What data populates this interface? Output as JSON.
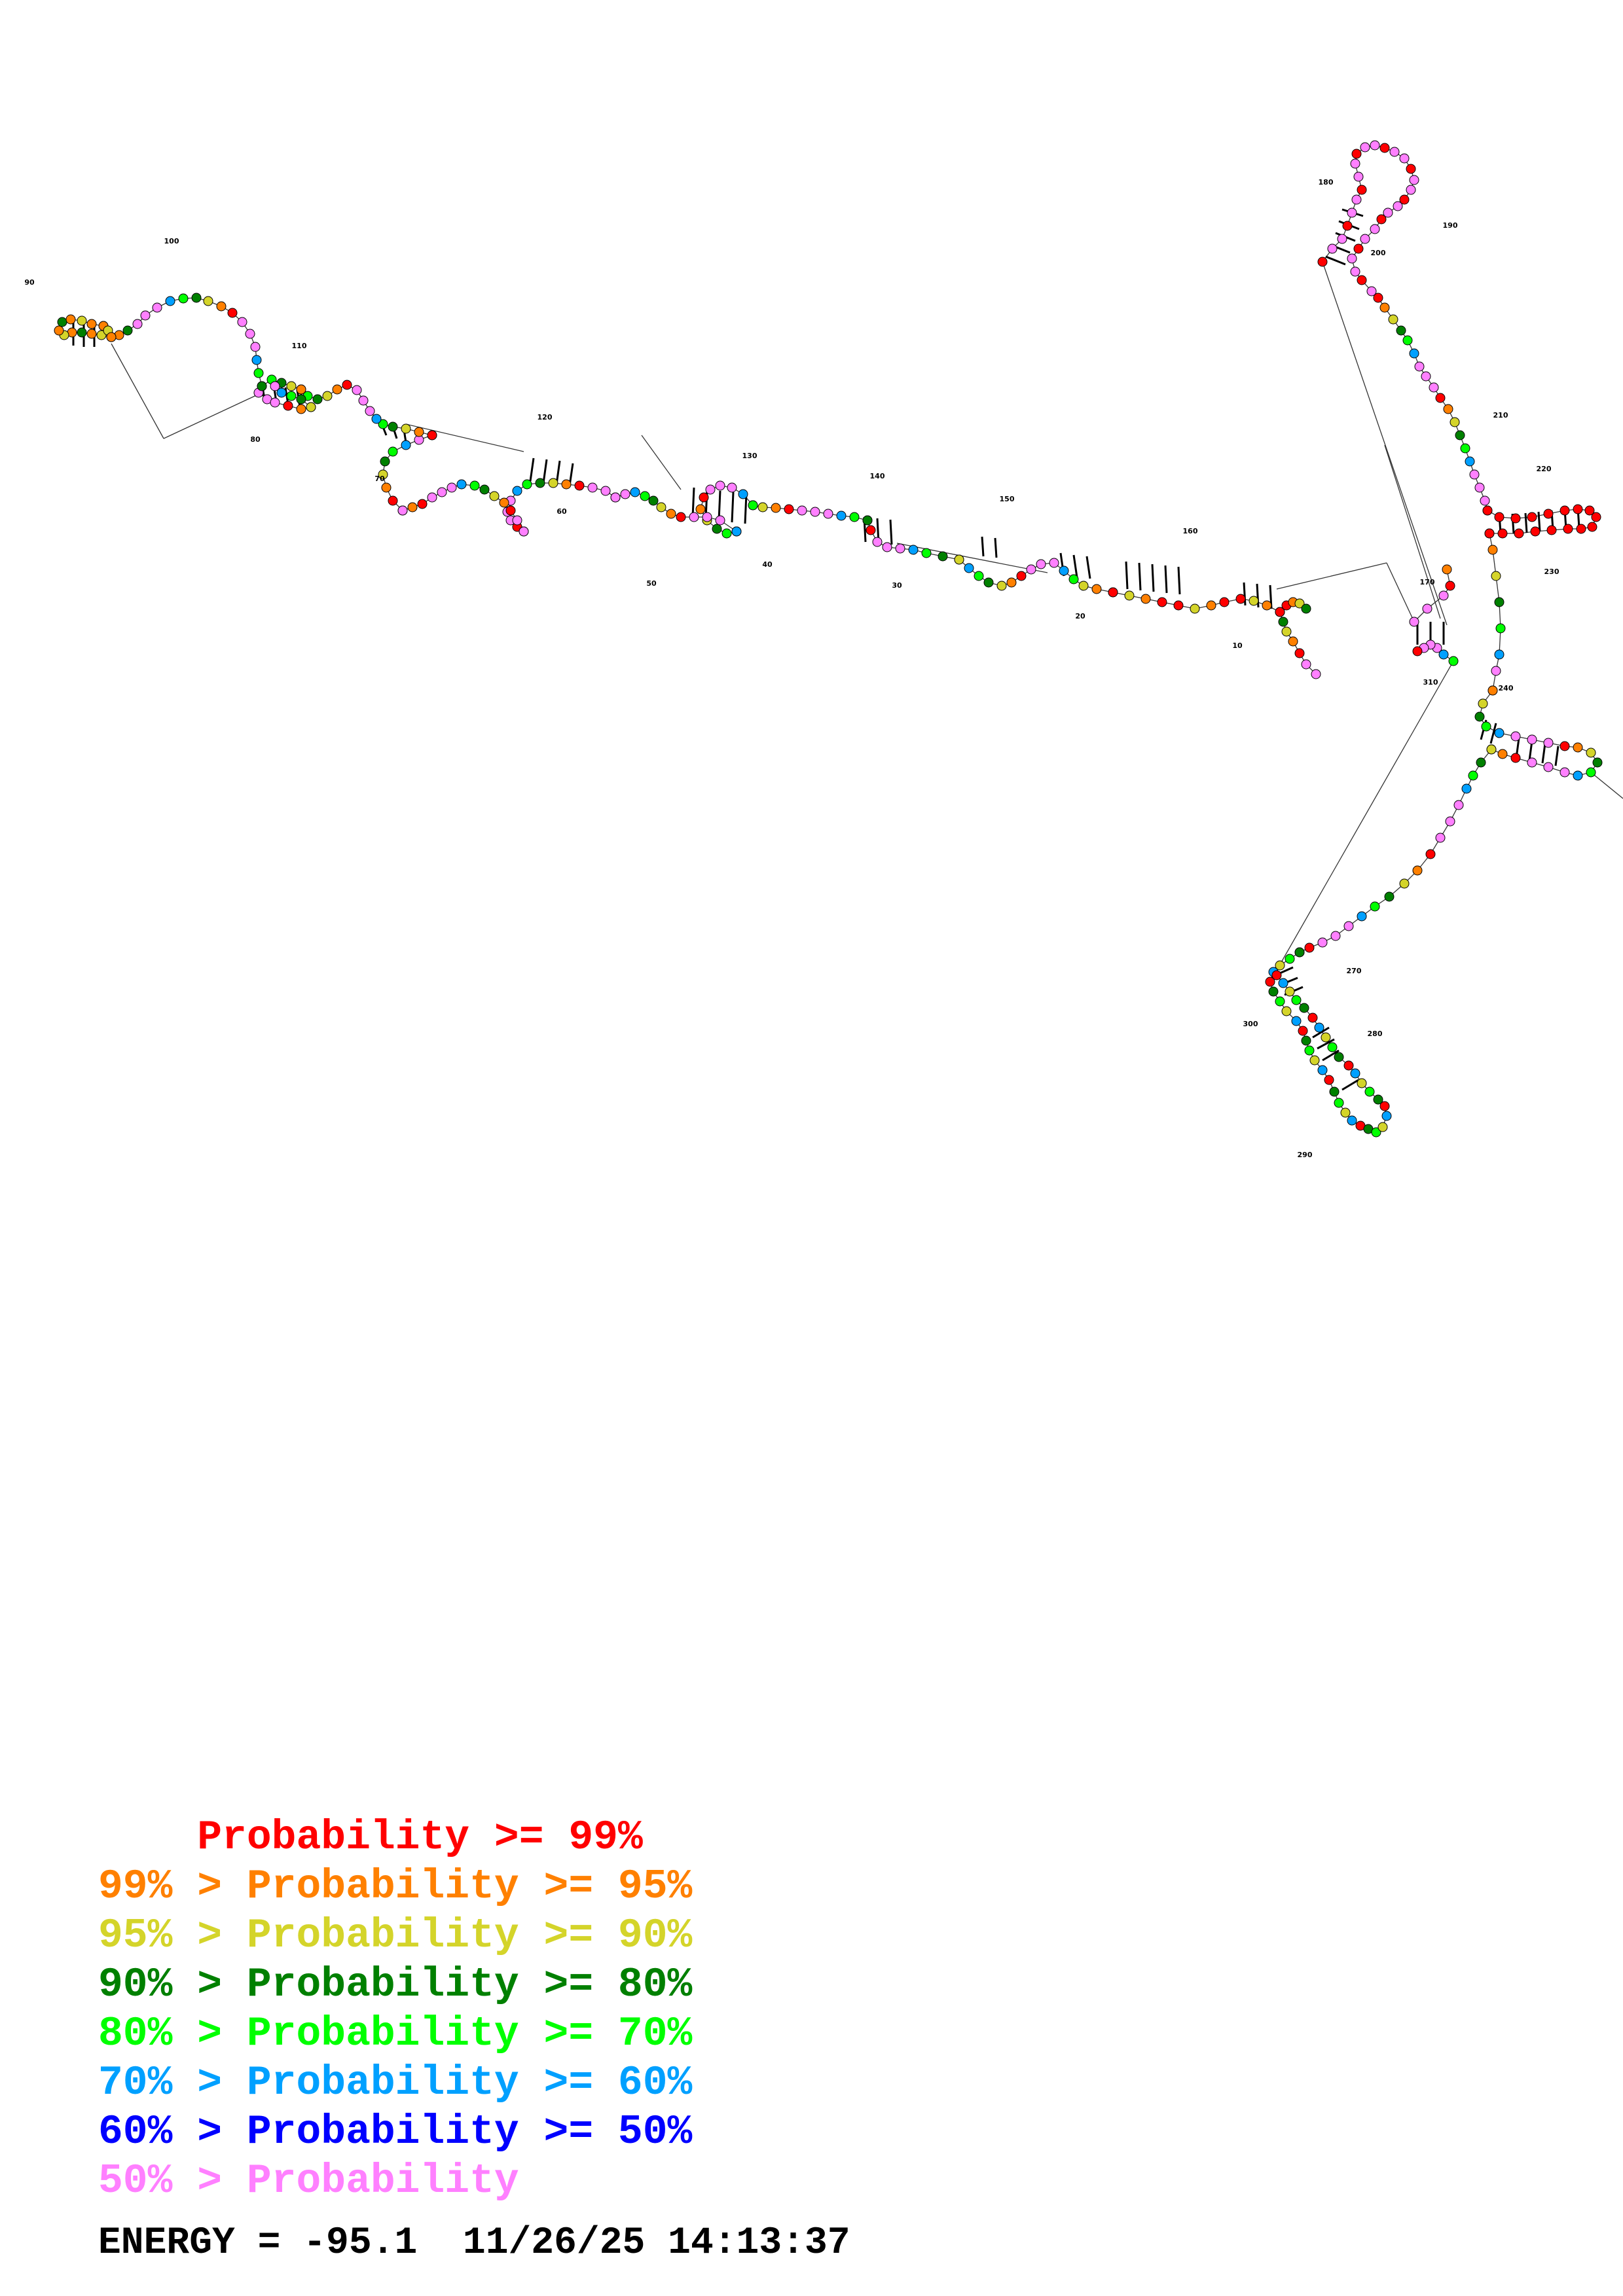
{
  "colors": {
    "p99": "#ff0000",
    "p95": "#ff8000",
    "p90": "#d4d42a",
    "p80": "#008000",
    "p70": "#00ff00",
    "p60": "#00a0ff",
    "p50": "#0000ff",
    "plow": "#ff80ff"
  },
  "diagram": {
    "position_labels": [
      "10",
      "20",
      "30",
      "40",
      "50",
      "60",
      "70",
      "80",
      "90",
      "100",
      "110",
      "120",
      "130",
      "140",
      "150",
      "160",
      "170",
      "180",
      "190",
      "200",
      "210",
      "220",
      "230",
      "240",
      "270",
      "280",
      "290",
      "300",
      "310"
    ]
  },
  "legend": [
    {
      "prefix": "    ",
      "label": "Probability >= 99%",
      "color": "#ff0000"
    },
    {
      "prefix": "99% > ",
      "label": "Probability >= 95%",
      "color": "#ff8000"
    },
    {
      "prefix": "95% > ",
      "label": "Probability >= 90%",
      "color": "#d4d42a"
    },
    {
      "prefix": "90% > ",
      "label": "Probability >= 80%",
      "color": "#008000"
    },
    {
      "prefix": "80% > ",
      "label": "Probability >= 70%",
      "color": "#00ff00"
    },
    {
      "prefix": "70% > ",
      "label": "Probability >= 60%",
      "color": "#00a0ff"
    },
    {
      "prefix": "60% > ",
      "label": "Probability >= 50%",
      "color": "#0000ff"
    },
    {
      "prefix": "50% > ",
      "label": "Probability",
      "color": "#ff80ff"
    }
  ],
  "footer": {
    "energy": "ENERGY = -95.1  11/26/25 14:13:37"
  }
}
